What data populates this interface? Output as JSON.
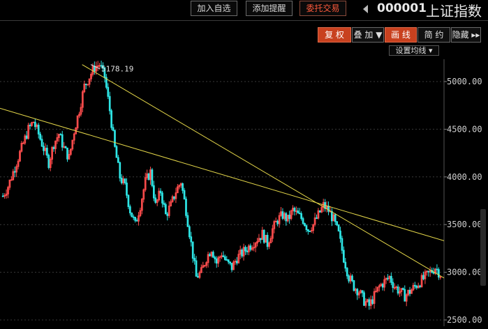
{
  "toolbar": {
    "add_watchlist": "加入自选",
    "add_alert": "添加提醒",
    "entrust_trade": "委托交易"
  },
  "stock": {
    "code": "000001",
    "name": "上证指数"
  },
  "chart_toolbar": {
    "fuquan": "复 权",
    "overlay": "叠 加 ▼",
    "draw_line": "画 线",
    "simple": "简 约",
    "hide": "隐藏 ▸▸",
    "ma_settings": "设置均线 ▾"
  },
  "colors": {
    "up": "#ff4d4d",
    "down": "#2ee6e6",
    "trendline": "#e6d84a",
    "grid": "#3a3a3a"
  },
  "chart_data": {
    "type": "candlestick",
    "y_axis_ticks": [
      "5000.00",
      "4500.00",
      "4000.00",
      "3500.00",
      "3000.00",
      "2500.00"
    ],
    "ylim": [
      2450,
      5300
    ],
    "peak_annotation": "5178.19",
    "peak_value": 5178.19,
    "trendlines": [
      {
        "from": [
          0,
          4720
        ],
        "to": [
          100,
          3330
        ]
      },
      {
        "from": [
          18.5,
          5178
        ],
        "to": [
          100,
          2940
        ]
      }
    ],
    "closes_path": [
      3800,
      3900,
      4050,
      4200,
      4350,
      4500,
      4580,
      4450,
      4300,
      4150,
      4350,
      4450,
      4300,
      4200,
      4480,
      4700,
      4950,
      5050,
      5150,
      5178,
      5050,
      4700,
      4300,
      4000,
      3900,
      3650,
      3500,
      3700,
      3950,
      4050,
      3700,
      3850,
      3600,
      3700,
      3850,
      3950,
      3650,
      3300,
      2950,
      3000,
      3150,
      3250,
      3100,
      3200,
      3100,
      3050,
      3150,
      3200,
      3250,
      3300,
      3350,
      3400,
      3300,
      3450,
      3550,
      3600,
      3550,
      3650,
      3600,
      3550,
      3450,
      3500,
      3600,
      3700,
      3650,
      3550,
      3400,
      3150,
      2950,
      2850,
      2800,
      2700,
      2650,
      2750,
      2850,
      2900,
      2950,
      2850,
      2800,
      2750,
      2800,
      2850,
      2900,
      2950,
      3000,
      3050,
      2980
    ]
  }
}
